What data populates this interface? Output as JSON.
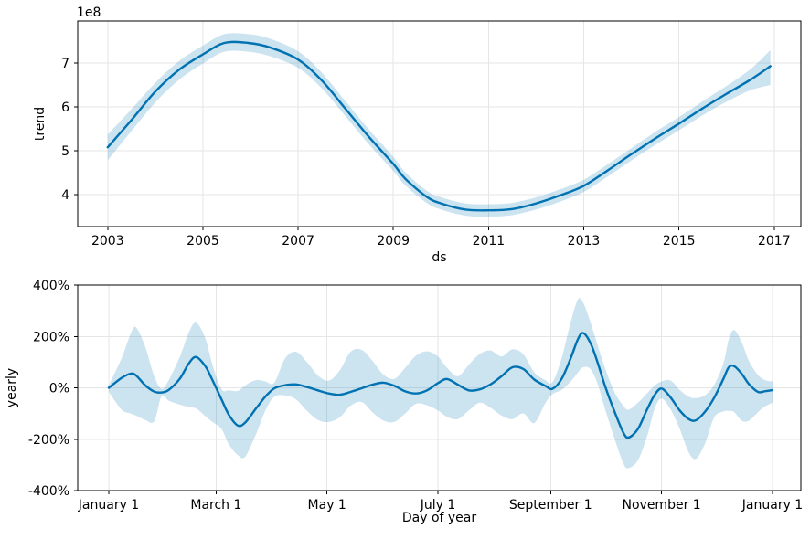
{
  "figure": {
    "background": "#ffffff",
    "accent_line_color": "#0072B2",
    "band_fill_color": "rgba(0,114,178,0.2)",
    "grid_color": "#e6e6e6",
    "spine_color": "#000000",
    "text_color": "#000000"
  },
  "chart_data": [
    {
      "type": "line",
      "name": "trend",
      "xlabel": "ds",
      "ylabel": "trend",
      "axis_offset_label": "1e8",
      "grid": true,
      "legend_position": "none",
      "y_unit_multiplier": 100000000,
      "xlim": [
        2002.37,
        2017.56
      ],
      "ylim": [
        3.27,
        7.96
      ],
      "x_ticks": [
        {
          "v": 2003,
          "label": "2003"
        },
        {
          "v": 2005,
          "label": "2005"
        },
        {
          "v": 2007,
          "label": "2007"
        },
        {
          "v": 2009,
          "label": "2009"
        },
        {
          "v": 2011,
          "label": "2011"
        },
        {
          "v": 2013,
          "label": "2013"
        },
        {
          "v": 2015,
          "label": "2015"
        },
        {
          "v": 2017,
          "label": "2017"
        }
      ],
      "y_ticks": [
        {
          "v": 4,
          "label": "4"
        },
        {
          "v": 5,
          "label": "5"
        },
        {
          "v": 6,
          "label": "6"
        },
        {
          "v": 7,
          "label": "7"
        }
      ],
      "x": [
        2003.0,
        2003.5,
        2004.0,
        2004.5,
        2005.0,
        2005.45,
        2005.95,
        2006.4,
        2007.0,
        2007.5,
        2008.0,
        2008.5,
        2009.0,
        2009.25,
        2009.7,
        2010.0,
        2010.5,
        2011.0,
        2011.5,
        2012.0,
        2012.5,
        2013.0,
        2013.5,
        2014.0,
        2014.5,
        2015.0,
        2015.5,
        2016.0,
        2016.5,
        2016.92
      ],
      "y": [
        5.08,
        5.7,
        6.35,
        6.85,
        7.2,
        7.46,
        7.46,
        7.36,
        7.08,
        6.6,
        5.95,
        5.3,
        4.7,
        4.36,
        3.95,
        3.8,
        3.66,
        3.64,
        3.67,
        3.8,
        3.98,
        4.2,
        4.55,
        4.92,
        5.28,
        5.62,
        5.97,
        6.3,
        6.62,
        6.93
      ],
      "lower": [
        4.78,
        5.45,
        6.1,
        6.62,
        6.99,
        7.26,
        7.26,
        7.16,
        6.89,
        6.42,
        5.78,
        5.13,
        4.54,
        4.21,
        3.81,
        3.66,
        3.52,
        3.5,
        3.53,
        3.66,
        3.84,
        4.06,
        4.41,
        4.78,
        5.13,
        5.47,
        5.81,
        6.12,
        6.38,
        6.5
      ],
      "upper": [
        5.37,
        5.95,
        6.55,
        7.05,
        7.4,
        7.66,
        7.66,
        7.56,
        7.27,
        6.78,
        6.12,
        5.47,
        4.86,
        4.51,
        4.09,
        3.94,
        3.8,
        3.78,
        3.81,
        3.94,
        4.12,
        4.34,
        4.69,
        5.06,
        5.43,
        5.77,
        6.13,
        6.48,
        6.86,
        7.3
      ]
    },
    {
      "type": "line",
      "name": "yearly",
      "xlabel": "Day of year",
      "ylabel": "yearly",
      "grid": true,
      "legend_position": "none",
      "y_unit": "percent",
      "xlim": [
        -17.1,
        380.6
      ],
      "ylim": [
        -400,
        400
      ],
      "x_ticks": [
        {
          "v": 0,
          "label": "January 1"
        },
        {
          "v": 59,
          "label": "March 1"
        },
        {
          "v": 120,
          "label": "May 1"
        },
        {
          "v": 181,
          "label": "July 1"
        },
        {
          "v": 243,
          "label": "September 1"
        },
        {
          "v": 304,
          "label": "November 1"
        },
        {
          "v": 365,
          "label": "January 1"
        }
      ],
      "y_ticks": [
        {
          "v": -400,
          "label": "-400%"
        },
        {
          "v": -200,
          "label": "-200%"
        },
        {
          "v": 0,
          "label": "0%"
        },
        {
          "v": 200,
          "label": "200%"
        },
        {
          "v": 400,
          "label": "400%"
        }
      ],
      "x": [
        0,
        7,
        12,
        15,
        20,
        25,
        29,
        33,
        39,
        44,
        48,
        53,
        57,
        62,
        66,
        71,
        75,
        81,
        86,
        91,
        97,
        103,
        109,
        115,
        121,
        127,
        133,
        139,
        145,
        151,
        157,
        163,
        169,
        175,
        181,
        186,
        192,
        198,
        204,
        210,
        216,
        222,
        228,
        234,
        240,
        244,
        249,
        254,
        258,
        261,
        265,
        269,
        273,
        278,
        283,
        286,
        291,
        296,
        300,
        304,
        309,
        314,
        319,
        323,
        328,
        333,
        338,
        341,
        344,
        348,
        352,
        357,
        361,
        365
      ],
      "y": [
        0,
        38,
        55,
        48,
        10,
        -15,
        -18,
        -8,
        35,
        95,
        120,
        85,
        30,
        -45,
        -105,
        -147,
        -135,
        -80,
        -35,
        -2,
        10,
        13,
        3,
        -10,
        -22,
        -27,
        -16,
        -2,
        12,
        20,
        8,
        -14,
        -22,
        -10,
        18,
        34,
        12,
        -10,
        -6,
        14,
        45,
        80,
        73,
        32,
        8,
        -4,
        35,
        115,
        190,
        213,
        172,
        95,
        5,
        -90,
        -175,
        -193,
        -160,
        -85,
        -30,
        -3,
        -38,
        -88,
        -122,
        -126,
        -92,
        -38,
        35,
        80,
        84,
        55,
        15,
        -16,
        -13,
        -9
      ],
      "lower": [
        -15,
        -85,
        -100,
        -108,
        -125,
        -130,
        -32,
        -50,
        -65,
        -75,
        -80,
        -110,
        -133,
        -160,
        -220,
        -262,
        -268,
        -180,
        -90,
        -35,
        -30,
        -45,
        -90,
        -125,
        -133,
        -115,
        -70,
        -55,
        -95,
        -127,
        -133,
        -100,
        -62,
        -68,
        -88,
        -113,
        -122,
        -88,
        -58,
        -78,
        -108,
        -122,
        -100,
        -137,
        -60,
        -25,
        -8,
        25,
        60,
        80,
        72,
        12,
        -85,
        -195,
        -295,
        -312,
        -282,
        -190,
        -85,
        -42,
        -85,
        -160,
        -252,
        -276,
        -215,
        -115,
        -92,
        -90,
        -95,
        -128,
        -128,
        -95,
        -72,
        -58
      ],
      "upper": [
        10,
        115,
        210,
        235,
        160,
        45,
        -4,
        30,
        120,
        215,
        253,
        195,
        90,
        -5,
        -10,
        -12,
        10,
        30,
        25,
        20,
        115,
        140,
        100,
        48,
        28,
        68,
        140,
        148,
        105,
        52,
        35,
        78,
        125,
        142,
        122,
        78,
        45,
        90,
        132,
        145,
        122,
        150,
        130,
        60,
        30,
        22,
        115,
        255,
        344,
        330,
        252,
        162,
        75,
        -15,
        -70,
        -85,
        -58,
        -22,
        8,
        25,
        28,
        -8,
        -35,
        -40,
        -28,
        12,
        95,
        190,
        225,
        178,
        105,
        50,
        30,
        25
      ]
    }
  ]
}
